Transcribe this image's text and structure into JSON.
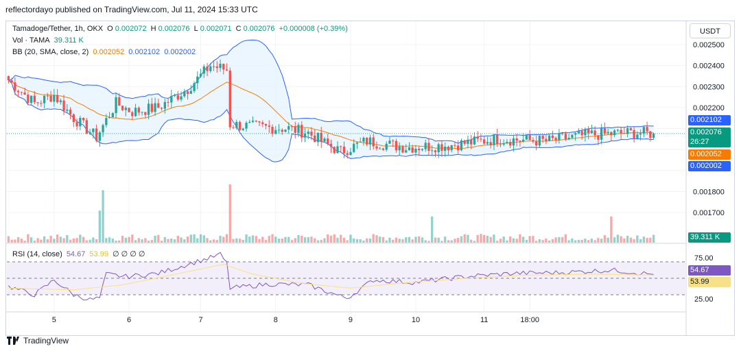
{
  "publisher_line": "reflectordayo published on TradingView.com, Jul 11, 2024 15:33 UTC",
  "legend": {
    "symbol": "Tamadoge/Tether, 1h, OKX",
    "o_label": "O",
    "o": "0.002072",
    "h_label": "H",
    "h": "0.002076",
    "l_label": "L",
    "l": "0.002071",
    "c_label": "C",
    "c": "0.002076",
    "change": "+0.000008 (+0.39%)",
    "vol_label": "Vol · TAMA",
    "vol": "39.311 K",
    "bb_label": "BB (20, SMA, close, 2)",
    "bb_basis": "0.002052",
    "bb_upper": "0.002102",
    "bb_lower": "0.002002",
    "rsi_label": "RSI (14, close)",
    "rsi": "54.67",
    "rsi_ma": "53.99",
    "rsi_extra": "∅  ∅  ∅  ∅"
  },
  "currency_button": "USDT",
  "price_tags": {
    "upper": "0.002102",
    "last": "0.002076",
    "countdown": "26:27",
    "basis": "0.002052",
    "lower": "0.002002",
    "volume": "39.311 K",
    "rsi": "54.67",
    "rsi_ma": "53.99"
  },
  "colors": {
    "up": "#26a69a",
    "down": "#ef5350",
    "band": "#2962ff",
    "basis": "#f57c00",
    "band_fill": "#e3f2fd",
    "rsi_line": "#7e57c2",
    "rsi_ma": "#f9e27c",
    "rsi_bg": "#f3effa"
  },
  "footer_brand": "TradingView",
  "chart_data": [
    {
      "type": "candlestick",
      "title": "Tamadoge/Tether, 1h, OKX",
      "x_ticks": [
        "5",
        "6",
        "7",
        "8",
        "9",
        "10",
        "11",
        "18:00"
      ],
      "y_ticks": [
        "0.002500",
        "0.002400",
        "0.002300",
        "0.002200",
        "0.001800",
        "0.001700"
      ],
      "ylim": [
        0.00166,
        0.00253
      ],
      "grid": true,
      "anchors": [
        {
          "x": 0,
          "close": 0.00233
        },
        {
          "x": 8,
          "close": 0.00222
        },
        {
          "x": 14,
          "close": 0.00226
        },
        {
          "x": 20,
          "close": 0.00215
        },
        {
          "x": 27,
          "close": 0.00206
        },
        {
          "x": 33,
          "close": 0.00222
        },
        {
          "x": 38,
          "close": 0.00218
        },
        {
          "x": 46,
          "close": 0.0022
        },
        {
          "x": 55,
          "close": 0.00229
        },
        {
          "x": 62,
          "close": 0.0024
        },
        {
          "x": 67,
          "close": 0.00238
        },
        {
          "x": 68,
          "close": 0.00212
        },
        {
          "x": 74,
          "close": 0.00211
        },
        {
          "x": 86,
          "close": 0.0021
        },
        {
          "x": 92,
          "close": 0.00208
        },
        {
          "x": 97,
          "close": 0.00203
        },
        {
          "x": 102,
          "close": 0.00199
        },
        {
          "x": 110,
          "close": 0.00204
        },
        {
          "x": 122,
          "close": 0.00201
        },
        {
          "x": 135,
          "close": 0.00202
        },
        {
          "x": 150,
          "close": 0.00205
        },
        {
          "x": 165,
          "close": 0.00204
        },
        {
          "x": 178,
          "close": 0.00207
        },
        {
          "x": 192,
          "close": 0.00208
        },
        {
          "x": 198,
          "close": 0.002076
        }
      ],
      "bollinger": {
        "period": 20,
        "stddev": 2,
        "basis": 0.002052,
        "upper": 0.002102,
        "lower": 0.002002
      }
    },
    {
      "type": "bar",
      "title": "Vol · TAMA",
      "last": "39.311 K",
      "spikes": [
        {
          "x": 28,
          "rel": 0.55
        },
        {
          "x": 29,
          "rel": 0.9
        },
        {
          "x": 68,
          "rel": 1.0
        },
        {
          "x": 130,
          "rel": 0.45
        },
        {
          "x": 185,
          "rel": 0.45
        }
      ]
    },
    {
      "type": "line",
      "title": "RSI (14, close)",
      "y_ticks": [
        "75.00",
        "25.00"
      ],
      "ylim": [
        10,
        90
      ],
      "bands": [
        70,
        50,
        30
      ],
      "series": [
        {
          "name": "RSI",
          "anchors": [
            {
              "x": 0,
              "y": 40
            },
            {
              "x": 8,
              "y": 30
            },
            {
              "x": 14,
              "y": 48
            },
            {
              "x": 20,
              "y": 30
            },
            {
              "x": 25,
              "y": 24
            },
            {
              "x": 28,
              "y": 26
            },
            {
              "x": 30,
              "y": 55
            },
            {
              "x": 36,
              "y": 52
            },
            {
              "x": 46,
              "y": 56
            },
            {
              "x": 55,
              "y": 67
            },
            {
              "x": 62,
              "y": 75
            },
            {
              "x": 65,
              "y": 79
            },
            {
              "x": 67,
              "y": 68
            },
            {
              "x": 68,
              "y": 38
            },
            {
              "x": 80,
              "y": 43
            },
            {
              "x": 92,
              "y": 42
            },
            {
              "x": 102,
              "y": 28
            },
            {
              "x": 104,
              "y": 26
            },
            {
              "x": 112,
              "y": 48
            },
            {
              "x": 125,
              "y": 45
            },
            {
              "x": 140,
              "y": 52
            },
            {
              "x": 155,
              "y": 56
            },
            {
              "x": 170,
              "y": 57
            },
            {
              "x": 185,
              "y": 60
            },
            {
              "x": 198,
              "y": 54.67
            }
          ]
        },
        {
          "name": "MA",
          "anchors": [
            {
              "x": 0,
              "y": 38
            },
            {
              "x": 20,
              "y": 36
            },
            {
              "x": 35,
              "y": 42
            },
            {
              "x": 55,
              "y": 58
            },
            {
              "x": 66,
              "y": 67
            },
            {
              "x": 75,
              "y": 55
            },
            {
              "x": 90,
              "y": 44
            },
            {
              "x": 105,
              "y": 38
            },
            {
              "x": 120,
              "y": 44
            },
            {
              "x": 140,
              "y": 50
            },
            {
              "x": 160,
              "y": 54
            },
            {
              "x": 180,
              "y": 55
            },
            {
              "x": 198,
              "y": 53.99
            }
          ]
        }
      ]
    }
  ]
}
